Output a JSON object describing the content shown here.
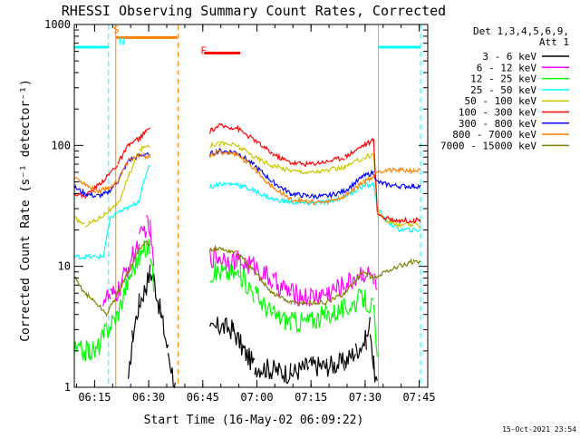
{
  "chart_data": {
    "type": "line",
    "title": "RHESSI Observing Summary Count Rates, Corrected",
    "xlabel": "Start Time (16-May-02 06:09:22)",
    "ylabel": "Corrected Count Rate (s⁻¹ detector⁻¹)",
    "yscale": "log",
    "ylim": [
      1,
      1000
    ],
    "xlim_minutes": [
      0,
      98
    ],
    "x_ticks": [
      {
        "label": "06:15",
        "value": 5.63
      },
      {
        "label": "06:30",
        "value": 20.63
      },
      {
        "label": "06:45",
        "value": 35.63
      },
      {
        "label": "07:00",
        "value": 50.63
      },
      {
        "label": "07:15",
        "value": 65.63
      },
      {
        "label": "07:30",
        "value": 80.63
      },
      {
        "label": "07:45",
        "value": 95.63
      }
    ],
    "y_ticks": [
      {
        "label": "1",
        "value": 1
      },
      {
        "label": "10",
        "value": 10
      },
      {
        "label": "100",
        "value": 100
      },
      {
        "label": "1000",
        "value": 1000
      }
    ],
    "legend": {
      "header": [
        "Det 1,3,4,5,6,9,",
        "Att 1"
      ],
      "placement": "right"
    },
    "series": [
      {
        "name": "3 - 6 keV",
        "color": "#000000",
        "points": [
          [
            15,
            1
          ],
          [
            16,
            2.5
          ],
          [
            18,
            5
          ],
          [
            20,
            7
          ],
          [
            21,
            9
          ],
          [
            22,
            8
          ],
          [
            24,
            4
          ],
          [
            26,
            2
          ],
          [
            28,
            1
          ],
          [
            37.6,
            2.8
          ],
          [
            40,
            3.2
          ],
          [
            44,
            3
          ],
          [
            47,
            2
          ],
          [
            50,
            1.5
          ],
          [
            55,
            1.4
          ],
          [
            60,
            1.3
          ],
          [
            65,
            1.5
          ],
          [
            70,
            1.5
          ],
          [
            75,
            1.6
          ],
          [
            78,
            2
          ],
          [
            81,
            2.5
          ],
          [
            82,
            3.3
          ],
          [
            83,
            1.5
          ],
          [
            84,
            1
          ]
        ]
      },
      {
        "name": "6 - 12 keV",
        "color": "#ff00ff",
        "points": [
          [
            8,
            5.5
          ],
          [
            10,
            5.5
          ],
          [
            12,
            6
          ],
          [
            15,
            10
          ],
          [
            18,
            16
          ],
          [
            20,
            22
          ],
          [
            21,
            20
          ],
          [
            22,
            10
          ],
          [
            37.6,
            12
          ],
          [
            40,
            12
          ],
          [
            45,
            11
          ],
          [
            50,
            10
          ],
          [
            55,
            7.5
          ],
          [
            60,
            6
          ],
          [
            65,
            5.5
          ],
          [
            70,
            6
          ],
          [
            75,
            7
          ],
          [
            80,
            9
          ],
          [
            83,
            8
          ],
          [
            84,
            6
          ]
        ]
      },
      {
        "name": "12 - 25 keV",
        "color": "#00ff00",
        "points": [
          [
            0,
            2
          ],
          [
            4,
            2
          ],
          [
            6,
            2
          ],
          [
            9,
            3
          ],
          [
            12,
            4
          ],
          [
            15,
            8
          ],
          [
            18,
            12
          ],
          [
            20,
            14
          ],
          [
            21,
            14
          ],
          [
            22,
            7
          ],
          [
            37.6,
            9
          ],
          [
            42,
            9
          ],
          [
            46,
            8.5
          ],
          [
            50,
            6
          ],
          [
            55,
            4
          ],
          [
            60,
            3.5
          ],
          [
            65,
            3.5
          ],
          [
            70,
            4
          ],
          [
            75,
            4.5
          ],
          [
            80,
            5.5
          ],
          [
            83,
            4.5
          ],
          [
            84,
            1.5
          ]
        ]
      },
      {
        "name": "25 - 50 keV",
        "color": "#00ffff",
        "points": [
          [
            0,
            12
          ],
          [
            3,
            12
          ],
          [
            8,
            12
          ],
          [
            10,
            25
          ],
          [
            12,
            28
          ],
          [
            15,
            30
          ],
          [
            18,
            35
          ],
          [
            20,
            60
          ],
          [
            21,
            70
          ],
          [
            37.6,
            45
          ],
          [
            40,
            48
          ],
          [
            45,
            48
          ],
          [
            50,
            42
          ],
          [
            55,
            36
          ],
          [
            60,
            34
          ],
          [
            65,
            33
          ],
          [
            70,
            34
          ],
          [
            75,
            38
          ],
          [
            80,
            46
          ],
          [
            83,
            48
          ],
          [
            84,
            30
          ],
          [
            86,
            25
          ],
          [
            90,
            20
          ],
          [
            94,
            20
          ],
          [
            96,
            20
          ]
        ]
      },
      {
        "name": "50 - 100 keV",
        "color": "#c8c800",
        "points": [
          [
            0,
            25
          ],
          [
            3,
            22
          ],
          [
            6,
            24
          ],
          [
            9,
            28
          ],
          [
            12,
            32
          ],
          [
            15,
            55
          ],
          [
            18,
            90
          ],
          [
            20,
            100
          ],
          [
            21,
            100
          ],
          [
            37.6,
            100
          ],
          [
            40,
            105
          ],
          [
            45,
            100
          ],
          [
            50,
            80
          ],
          [
            55,
            68
          ],
          [
            60,
            62
          ],
          [
            65,
            60
          ],
          [
            70,
            62
          ],
          [
            75,
            66
          ],
          [
            80,
            78
          ],
          [
            83,
            85
          ],
          [
            84,
            30
          ],
          [
            86,
            24
          ],
          [
            90,
            22
          ],
          [
            94,
            22
          ],
          [
            96,
            22
          ]
        ]
      },
      {
        "name": "100 - 300 keV",
        "color": "#ff0000",
        "points": [
          [
            0,
            40
          ],
          [
            3,
            38
          ],
          [
            6,
            45
          ],
          [
            9,
            55
          ],
          [
            12,
            70
          ],
          [
            15,
            100
          ],
          [
            18,
            115
          ],
          [
            20,
            130
          ],
          [
            21,
            140
          ],
          [
            37.6,
            130
          ],
          [
            40,
            145
          ],
          [
            45,
            140
          ],
          [
            50,
            110
          ],
          [
            55,
            85
          ],
          [
            60,
            72
          ],
          [
            65,
            70
          ],
          [
            70,
            74
          ],
          [
            75,
            80
          ],
          [
            80,
            100
          ],
          [
            83,
            110
          ],
          [
            84,
            28
          ],
          [
            86,
            25
          ],
          [
            90,
            24
          ],
          [
            94,
            24
          ],
          [
            96,
            24
          ]
        ]
      },
      {
        "name": "300 - 800 keV",
        "color": "#0000ff",
        "points": [
          [
            0,
            45
          ],
          [
            3,
            40
          ],
          [
            6,
            38
          ],
          [
            9,
            40
          ],
          [
            12,
            50
          ],
          [
            15,
            75
          ],
          [
            18,
            82
          ],
          [
            20,
            85
          ],
          [
            21,
            80
          ],
          [
            37.6,
            85
          ],
          [
            40,
            90
          ],
          [
            45,
            88
          ],
          [
            50,
            68
          ],
          [
            55,
            50
          ],
          [
            60,
            40
          ],
          [
            65,
            38
          ],
          [
            70,
            38
          ],
          [
            75,
            42
          ],
          [
            80,
            55
          ],
          [
            83,
            60
          ],
          [
            84,
            50
          ],
          [
            86,
            48
          ],
          [
            90,
            46
          ],
          [
            94,
            46
          ],
          [
            96,
            46
          ]
        ]
      },
      {
        "name": "800 - 7000 keV",
        "color": "#ff8000",
        "points": [
          [
            0,
            55
          ],
          [
            3,
            48
          ],
          [
            6,
            42
          ],
          [
            9,
            44
          ],
          [
            12,
            50
          ],
          [
            15,
            75
          ],
          [
            18,
            82
          ],
          [
            20,
            82
          ],
          [
            21,
            80
          ],
          [
            37.6,
            82
          ],
          [
            40,
            88
          ],
          [
            45,
            85
          ],
          [
            50,
            64
          ],
          [
            55,
            45
          ],
          [
            60,
            36
          ],
          [
            65,
            34
          ],
          [
            70,
            34
          ],
          [
            75,
            38
          ],
          [
            80,
            50
          ],
          [
            83,
            55
          ],
          [
            84,
            62
          ],
          [
            86,
            62
          ],
          [
            90,
            62
          ],
          [
            94,
            62
          ],
          [
            96,
            62
          ]
        ]
      },
      {
        "name": "7000 - 15000 keV",
        "color": "#808000",
        "points": [
          [
            0,
            8
          ],
          [
            3,
            6
          ],
          [
            6,
            5
          ],
          [
            9,
            4
          ],
          [
            12,
            6
          ],
          [
            15,
            9
          ],
          [
            18,
            14
          ],
          [
            20,
            16
          ],
          [
            21,
            15
          ],
          [
            37.6,
            14
          ],
          [
            40,
            14
          ],
          [
            45,
            13
          ],
          [
            50,
            9
          ],
          [
            55,
            6
          ],
          [
            60,
            5
          ],
          [
            65,
            5
          ],
          [
            70,
            5
          ],
          [
            75,
            6
          ],
          [
            80,
            9
          ],
          [
            83,
            8
          ],
          [
            84,
            8
          ],
          [
            86,
            9
          ],
          [
            90,
            10
          ],
          [
            94,
            11
          ],
          [
            96,
            11
          ]
        ]
      }
    ],
    "background_segments": [
      {
        "name": "cyan-left",
        "color": "#00ffff",
        "x0": 0,
        "x1": 9.5,
        "y": 650
      },
      {
        "name": "orange-top",
        "color": "#ff8000",
        "x0": 11.5,
        "x1": 28.5,
        "y": 780
      },
      {
        "name": "red-flare",
        "color": "#ff0000",
        "x0": 36,
        "x1": 46,
        "y": 580
      },
      {
        "name": "cyan-right",
        "color": "#00ffff",
        "x0": 84.3,
        "x1": 96,
        "y": 650
      }
    ],
    "vertical_markers": [
      {
        "name": "cyan-dashed-left",
        "color": "#00ffff",
        "x": 9.5,
        "style": "dashed"
      },
      {
        "name": "orange-solid",
        "color": "#ff8000",
        "x": 11.5,
        "style": "solid"
      },
      {
        "name": "orange-dashed-right",
        "color": "#ff8000",
        "x": 28.8,
        "style": "dashed"
      },
      {
        "name": "cyan-solid-right",
        "color": "#00ffff",
        "x": 84.3,
        "style": "solid"
      },
      {
        "name": "cyan-dashed-right",
        "color": "#00ffff",
        "x": 96,
        "style": "dashed"
      }
    ],
    "annotations": [
      {
        "name": "S",
        "text": "S",
        "color": "#ff8000",
        "x": 10.8,
        "y": 850
      },
      {
        "name": "N",
        "text": "N",
        "color": "#00ffff",
        "x": 12.3,
        "y": 680
      },
      {
        "name": "F",
        "text": "F",
        "color": "#ff0000",
        "x": 35.0,
        "y": 570
      }
    ],
    "footer_text": "15-Oct-2021 23:54"
  }
}
